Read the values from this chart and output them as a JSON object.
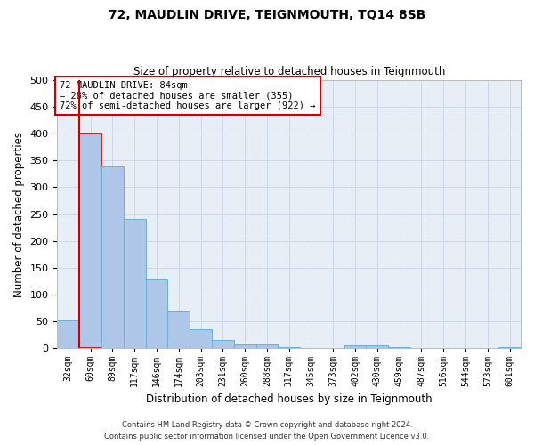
{
  "title": "72, MAUDLIN DRIVE, TEIGNMOUTH, TQ14 8SB",
  "subtitle": "Size of property relative to detached houses in Teignmouth",
  "xlabel": "Distribution of detached houses by size in Teignmouth",
  "ylabel": "Number of detached properties",
  "footer_line1": "Contains HM Land Registry data © Crown copyright and database right 2024.",
  "footer_line2": "Contains public sector information licensed under the Open Government Licence v3.0.",
  "categories": [
    "32sqm",
    "60sqm",
    "89sqm",
    "117sqm",
    "146sqm",
    "174sqm",
    "203sqm",
    "231sqm",
    "260sqm",
    "288sqm",
    "317sqm",
    "345sqm",
    "373sqm",
    "402sqm",
    "430sqm",
    "459sqm",
    "487sqm",
    "516sqm",
    "544sqm",
    "573sqm",
    "601sqm"
  ],
  "values": [
    52,
    400,
    338,
    241,
    128,
    70,
    35,
    16,
    7,
    7,
    2,
    0,
    0,
    6,
    5,
    3,
    0,
    0,
    0,
    0,
    3
  ],
  "bar_color": "#aec6e8",
  "bar_edge_color": "#6baed6",
  "highlight_bar_index": 1,
  "highlight_bar_edge_color": "#cc0000",
  "vline_color": "#cc0000",
  "vline_x": 1.5,
  "ylim": [
    0,
    500
  ],
  "yticks": [
    0,
    50,
    100,
    150,
    200,
    250,
    300,
    350,
    400,
    450,
    500
  ],
  "grid_color": "#c8d4e8",
  "background_color": "#e8eef6",
  "annotation_text": "72 MAUDLIN DRIVE: 84sqm\n← 28% of detached houses are smaller (355)\n72% of semi-detached houses are larger (922) →",
  "annotation_box_facecolor": "#ffffff",
  "annotation_box_edgecolor": "#cc0000",
  "property_bar_index": 1
}
